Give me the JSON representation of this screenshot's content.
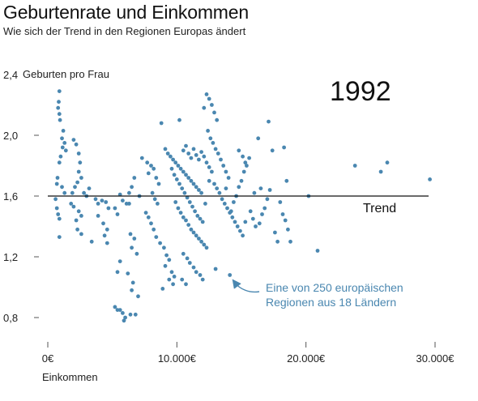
{
  "chart_data": {
    "type": "scatter",
    "title": "Geburtenrate und Einkommen",
    "subtitle": "Wie sich der Trend in den Regionen Europas ändert",
    "year_label": "1992",
    "ylabel": "Geburten pro Frau",
    "xlabel": "Einkommen",
    "xlim": [
      0,
      30000
    ],
    "ylim": [
      0.75,
      2.35
    ],
    "x_ticks": [
      {
        "value": 0,
        "label": "0€"
      },
      {
        "value": 10000,
        "label": "10.000€"
      },
      {
        "value": 20000,
        "label": "20.000€"
      },
      {
        "value": 30000,
        "label": "30.000€"
      }
    ],
    "y_ticks": [
      {
        "value": 0.8,
        "label": "0,8"
      },
      {
        "value": 1.2,
        "label": "1,2"
      },
      {
        "value": 1.6,
        "label": "1,6"
      },
      {
        "value": 2.0,
        "label": "2,0"
      },
      {
        "value": 2.4,
        "label": "2,4"
      }
    ],
    "trend": {
      "label": "Trend",
      "x": [
        0,
        29500
      ],
      "y": [
        1.6,
        1.6
      ]
    },
    "annotation": {
      "line1": "Eine von 250 europäischen",
      "line2": "Regionen aus 18 Ländern"
    },
    "colors": {
      "points": "#4a87b0",
      "trend": "#111111",
      "annotation": "#4a87b0",
      "axis": "#555555"
    },
    "points": [
      [
        900,
        2.29
      ],
      [
        850,
        2.22
      ],
      [
        800,
        2.18
      ],
      [
        900,
        2.14
      ],
      [
        950,
        2.1
      ],
      [
        1200,
        2.03
      ],
      [
        1100,
        1.98
      ],
      [
        1300,
        1.95
      ],
      [
        1150,
        1.92
      ],
      [
        1400,
        1.9
      ],
      [
        1000,
        1.86
      ],
      [
        900,
        1.82
      ],
      [
        750,
        1.72
      ],
      [
        700,
        1.68
      ],
      [
        1100,
        1.66
      ],
      [
        1300,
        1.62
      ],
      [
        600,
        1.58
      ],
      [
        700,
        1.52
      ],
      [
        800,
        1.48
      ],
      [
        900,
        1.45
      ],
      [
        900,
        1.33
      ],
      [
        1900,
        1.62
      ],
      [
        2000,
        1.97
      ],
      [
        2200,
        1.94
      ],
      [
        2400,
        1.88
      ],
      [
        2500,
        1.82
      ],
      [
        2400,
        1.76
      ],
      [
        2600,
        1.72
      ],
      [
        2300,
        1.69
      ],
      [
        2100,
        1.66
      ],
      [
        2800,
        1.62
      ],
      [
        3000,
        1.6
      ],
      [
        1800,
        1.55
      ],
      [
        2000,
        1.53
      ],
      [
        2400,
        1.5
      ],
      [
        2600,
        1.47
      ],
      [
        2200,
        1.44
      ],
      [
        2300,
        1.38
      ],
      [
        2600,
        1.35
      ],
      [
        3400,
        1.3
      ],
      [
        3700,
        1.58
      ],
      [
        3900,
        1.55
      ],
      [
        4200,
        1.57
      ],
      [
        4500,
        1.56
      ],
      [
        4700,
        1.52
      ],
      [
        3900,
        1.47
      ],
      [
        4300,
        1.42
      ],
      [
        4600,
        1.38
      ],
      [
        4400,
        1.34
      ],
      [
        4600,
        1.29
      ],
      [
        5200,
        1.52
      ],
      [
        5400,
        1.48
      ],
      [
        5600,
        1.61
      ],
      [
        5800,
        1.57
      ],
      [
        6100,
        1.55
      ],
      [
        6300,
        1.62
      ],
      [
        6500,
        1.66
      ],
      [
        6700,
        1.72
      ],
      [
        6400,
        1.35
      ],
      [
        6700,
        1.32
      ],
      [
        6500,
        1.26
      ],
      [
        6900,
        1.22
      ],
      [
        5600,
        1.17
      ],
      [
        5400,
        1.1
      ],
      [
        6200,
        1.09
      ],
      [
        6600,
        1.03
      ],
      [
        6500,
        0.98
      ],
      [
        7000,
        0.94
      ],
      [
        5200,
        0.87
      ],
      [
        5400,
        0.85
      ],
      [
        5600,
        0.85
      ],
      [
        5800,
        0.83
      ],
      [
        6000,
        0.8
      ],
      [
        6400,
        0.82
      ],
      [
        5900,
        0.78
      ],
      [
        6800,
        0.82
      ],
      [
        7300,
        1.85
      ],
      [
        7700,
        1.82
      ],
      [
        8000,
        1.8
      ],
      [
        7800,
        1.75
      ],
      [
        8200,
        1.78
      ],
      [
        8400,
        1.72
      ],
      [
        8600,
        1.68
      ],
      [
        8100,
        1.62
      ],
      [
        8300,
        1.58
      ],
      [
        8500,
        1.55
      ],
      [
        7600,
        1.49
      ],
      [
        7800,
        1.46
      ],
      [
        8000,
        1.42
      ],
      [
        8200,
        1.38
      ],
      [
        8400,
        1.33
      ],
      [
        8700,
        1.29
      ],
      [
        9000,
        1.26
      ],
      [
        9200,
        1.21
      ],
      [
        9400,
        1.18
      ],
      [
        9100,
        1.14
      ],
      [
        9600,
        1.1
      ],
      [
        9800,
        1.07
      ],
      [
        9400,
        1.05
      ],
      [
        9700,
        1.02
      ],
      [
        8900,
        0.99
      ],
      [
        8800,
        2.08
      ],
      [
        9100,
        1.91
      ],
      [
        9300,
        1.88
      ],
      [
        9500,
        1.86
      ],
      [
        9700,
        1.84
      ],
      [
        9900,
        1.82
      ],
      [
        10100,
        1.8
      ],
      [
        10300,
        1.78
      ],
      [
        10500,
        1.76
      ],
      [
        10700,
        1.74
      ],
      [
        10900,
        1.72
      ],
      [
        11100,
        1.7
      ],
      [
        11300,
        1.68
      ],
      [
        11500,
        1.66
      ],
      [
        11700,
        1.64
      ],
      [
        11900,
        1.62
      ],
      [
        9600,
        1.78
      ],
      [
        9800,
        1.74
      ],
      [
        10000,
        1.71
      ],
      [
        10200,
        1.68
      ],
      [
        10400,
        1.65
      ],
      [
        10600,
        1.62
      ],
      [
        10800,
        1.59
      ],
      [
        11000,
        1.56
      ],
      [
        11200,
        1.53
      ],
      [
        11400,
        1.5
      ],
      [
        11600,
        1.47
      ],
      [
        11800,
        1.45
      ],
      [
        12000,
        1.43
      ],
      [
        9900,
        1.56
      ],
      [
        10100,
        1.52
      ],
      [
        10300,
        1.49
      ],
      [
        10500,
        1.46
      ],
      [
        10700,
        1.44
      ],
      [
        10900,
        1.41
      ],
      [
        11100,
        1.38
      ],
      [
        11300,
        1.36
      ],
      [
        11500,
        1.34
      ],
      [
        11700,
        1.32
      ],
      [
        11900,
        1.3
      ],
      [
        12100,
        1.28
      ],
      [
        12300,
        1.26
      ],
      [
        10500,
        1.22
      ],
      [
        10800,
        1.19
      ],
      [
        11000,
        1.16
      ],
      [
        11300,
        1.13
      ],
      [
        11500,
        1.1
      ],
      [
        11800,
        1.08
      ],
      [
        12000,
        1.05
      ],
      [
        10400,
        1.05
      ],
      [
        10700,
        1.02
      ],
      [
        10200,
        2.1
      ],
      [
        10500,
        1.9
      ],
      [
        10700,
        1.93
      ],
      [
        10900,
        1.88
      ],
      [
        11100,
        1.85
      ],
      [
        11300,
        1.91
      ],
      [
        11500,
        1.87
      ],
      [
        11700,
        1.84
      ],
      [
        11900,
        1.89
      ],
      [
        12100,
        1.86
      ],
      [
        12300,
        1.82
      ],
      [
        12500,
        1.79
      ],
      [
        12700,
        1.76
      ],
      [
        12100,
        2.18
      ],
      [
        12300,
        2.27
      ],
      [
        12500,
        2.24
      ],
      [
        12700,
        2.2
      ],
      [
        12900,
        2.15
      ],
      [
        13100,
        2.1
      ],
      [
        12400,
        2.03
      ],
      [
        12600,
        1.98
      ],
      [
        12800,
        1.95
      ],
      [
        13000,
        1.91
      ],
      [
        13200,
        1.88
      ],
      [
        13400,
        1.84
      ],
      [
        13600,
        1.8
      ],
      [
        13800,
        1.76
      ],
      [
        14000,
        1.72
      ],
      [
        12900,
        1.68
      ],
      [
        13100,
        1.65
      ],
      [
        13300,
        1.62
      ],
      [
        13500,
        1.58
      ],
      [
        13700,
        1.55
      ],
      [
        13900,
        1.52
      ],
      [
        14100,
        1.49
      ],
      [
        14300,
        1.46
      ],
      [
        14500,
        1.43
      ],
      [
        14700,
        1.4
      ],
      [
        14900,
        1.37
      ],
      [
        15100,
        1.34
      ],
      [
        15300,
        1.43
      ],
      [
        14200,
        1.5
      ],
      [
        14400,
        1.56
      ],
      [
        14600,
        1.6
      ],
      [
        14800,
        1.66
      ],
      [
        15000,
        1.7
      ],
      [
        15200,
        1.76
      ],
      [
        15400,
        1.8
      ],
      [
        15600,
        1.85
      ],
      [
        14800,
        1.9
      ],
      [
        15100,
        1.86
      ],
      [
        15300,
        1.82
      ],
      [
        13000,
        1.12
      ],
      [
        14100,
        1.08
      ],
      [
        15700,
        1.5
      ],
      [
        15900,
        1.45
      ],
      [
        16100,
        1.4
      ],
      [
        16400,
        1.42
      ],
      [
        16600,
        1.48
      ],
      [
        16800,
        1.52
      ],
      [
        17000,
        1.58
      ],
      [
        17200,
        1.64
      ],
      [
        17400,
        1.9
      ],
      [
        17100,
        2.09
      ],
      [
        16300,
        1.98
      ],
      [
        17600,
        1.36
      ],
      [
        17800,
        1.3
      ],
      [
        18000,
        1.56
      ],
      [
        18200,
        1.48
      ],
      [
        18400,
        1.44
      ],
      [
        18600,
        1.38
      ],
      [
        18800,
        1.3
      ],
      [
        18500,
        1.7
      ],
      [
        18300,
        1.92
      ],
      [
        20200,
        1.6
      ],
      [
        20900,
        1.24
      ],
      [
        23800,
        1.8
      ],
      [
        25800,
        1.76
      ],
      [
        26300,
        1.82
      ],
      [
        29600,
        1.71
      ],
      [
        6300,
        1.55
      ],
      [
        7100,
        1.6
      ],
      [
        3200,
        1.65
      ],
      [
        12500,
        1.7
      ],
      [
        13800,
        1.65
      ],
      [
        16000,
        1.62
      ],
      [
        16500,
        1.65
      ],
      [
        12200,
        1.55
      ]
    ]
  }
}
